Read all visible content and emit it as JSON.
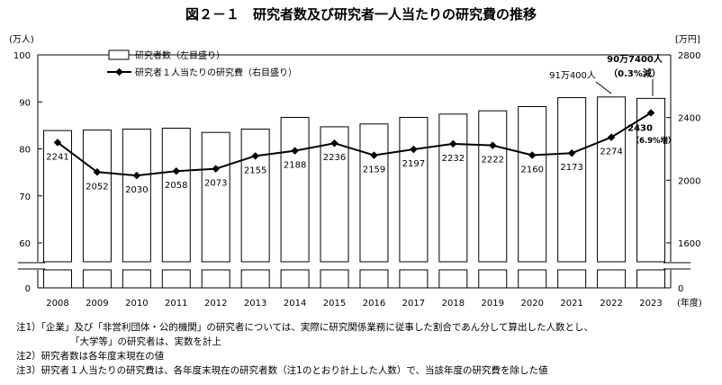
{
  "chart_data": {
    "type": "bar+line",
    "title": "図２－１　研究者数及び研究者一人当たりの研究費の推移",
    "left_axis": {
      "unit": "(万人)",
      "ticks": [
        "100",
        "90",
        "80",
        "70",
        "60",
        "0"
      ],
      "ylim": [
        0,
        100
      ],
      "break": true
    },
    "right_axis": {
      "unit": "[万円]",
      "ticks": [
        "2800",
        "2400",
        "2000",
        "1600",
        "0"
      ],
      "ylim": [
        0,
        2800
      ],
      "break": true
    },
    "x_unit": "(年度)",
    "categories": [
      "2008",
      "2009",
      "2010",
      "2011",
      "2012",
      "2013",
      "2014",
      "2015",
      "2016",
      "2017",
      "2018",
      "2019",
      "2020",
      "2021",
      "2022",
      "2023"
    ],
    "series": [
      {
        "name": "研究者数（左目盛り）",
        "type": "bar",
        "values": [
          83.9,
          84.0,
          84.2,
          84.4,
          83.5,
          84.2,
          86.7,
          84.7,
          85.3,
          86.7,
          87.4,
          88.1,
          89.0,
          90.9,
          91.04,
          90.74
        ]
      },
      {
        "name": "研究者１人当たりの研究費（右目盛り）",
        "type": "line",
        "values": [
          2241,
          2052,
          2030,
          2058,
          2073,
          2155,
          2188,
          2236,
          2159,
          2197,
          2232,
          2222,
          2160,
          2173,
          2274,
          2430
        ],
        "labels": [
          "2241",
          "2052",
          "2030",
          "2058",
          "2073",
          "2155",
          "2188",
          "2236",
          "2159",
          "2197",
          "2232",
          "2222",
          "2160",
          "2173",
          "2274",
          "2430"
        ]
      }
    ],
    "annotations": {
      "bar_2022": "91万400人",
      "bar_2023_value": "90万7400人",
      "bar_2023_change": "（0.3%減）",
      "line_2023_change": "（6.9%増）"
    }
  },
  "notes": [
    "注1）「企業」及び「非営利団体・公的機関」の研究者については、実際に研究関係業務に従事した割合であん分して算出した人数とし、",
    "「大学等」の研究者は、実数を計上",
    "注2）研究者数は各年度末現在の値",
    "注3）研究者１人当たりの研究費は、各年度末現在の研究者数（注1のとおり計上した人数）で、当該年度の研究費を除した値"
  ]
}
